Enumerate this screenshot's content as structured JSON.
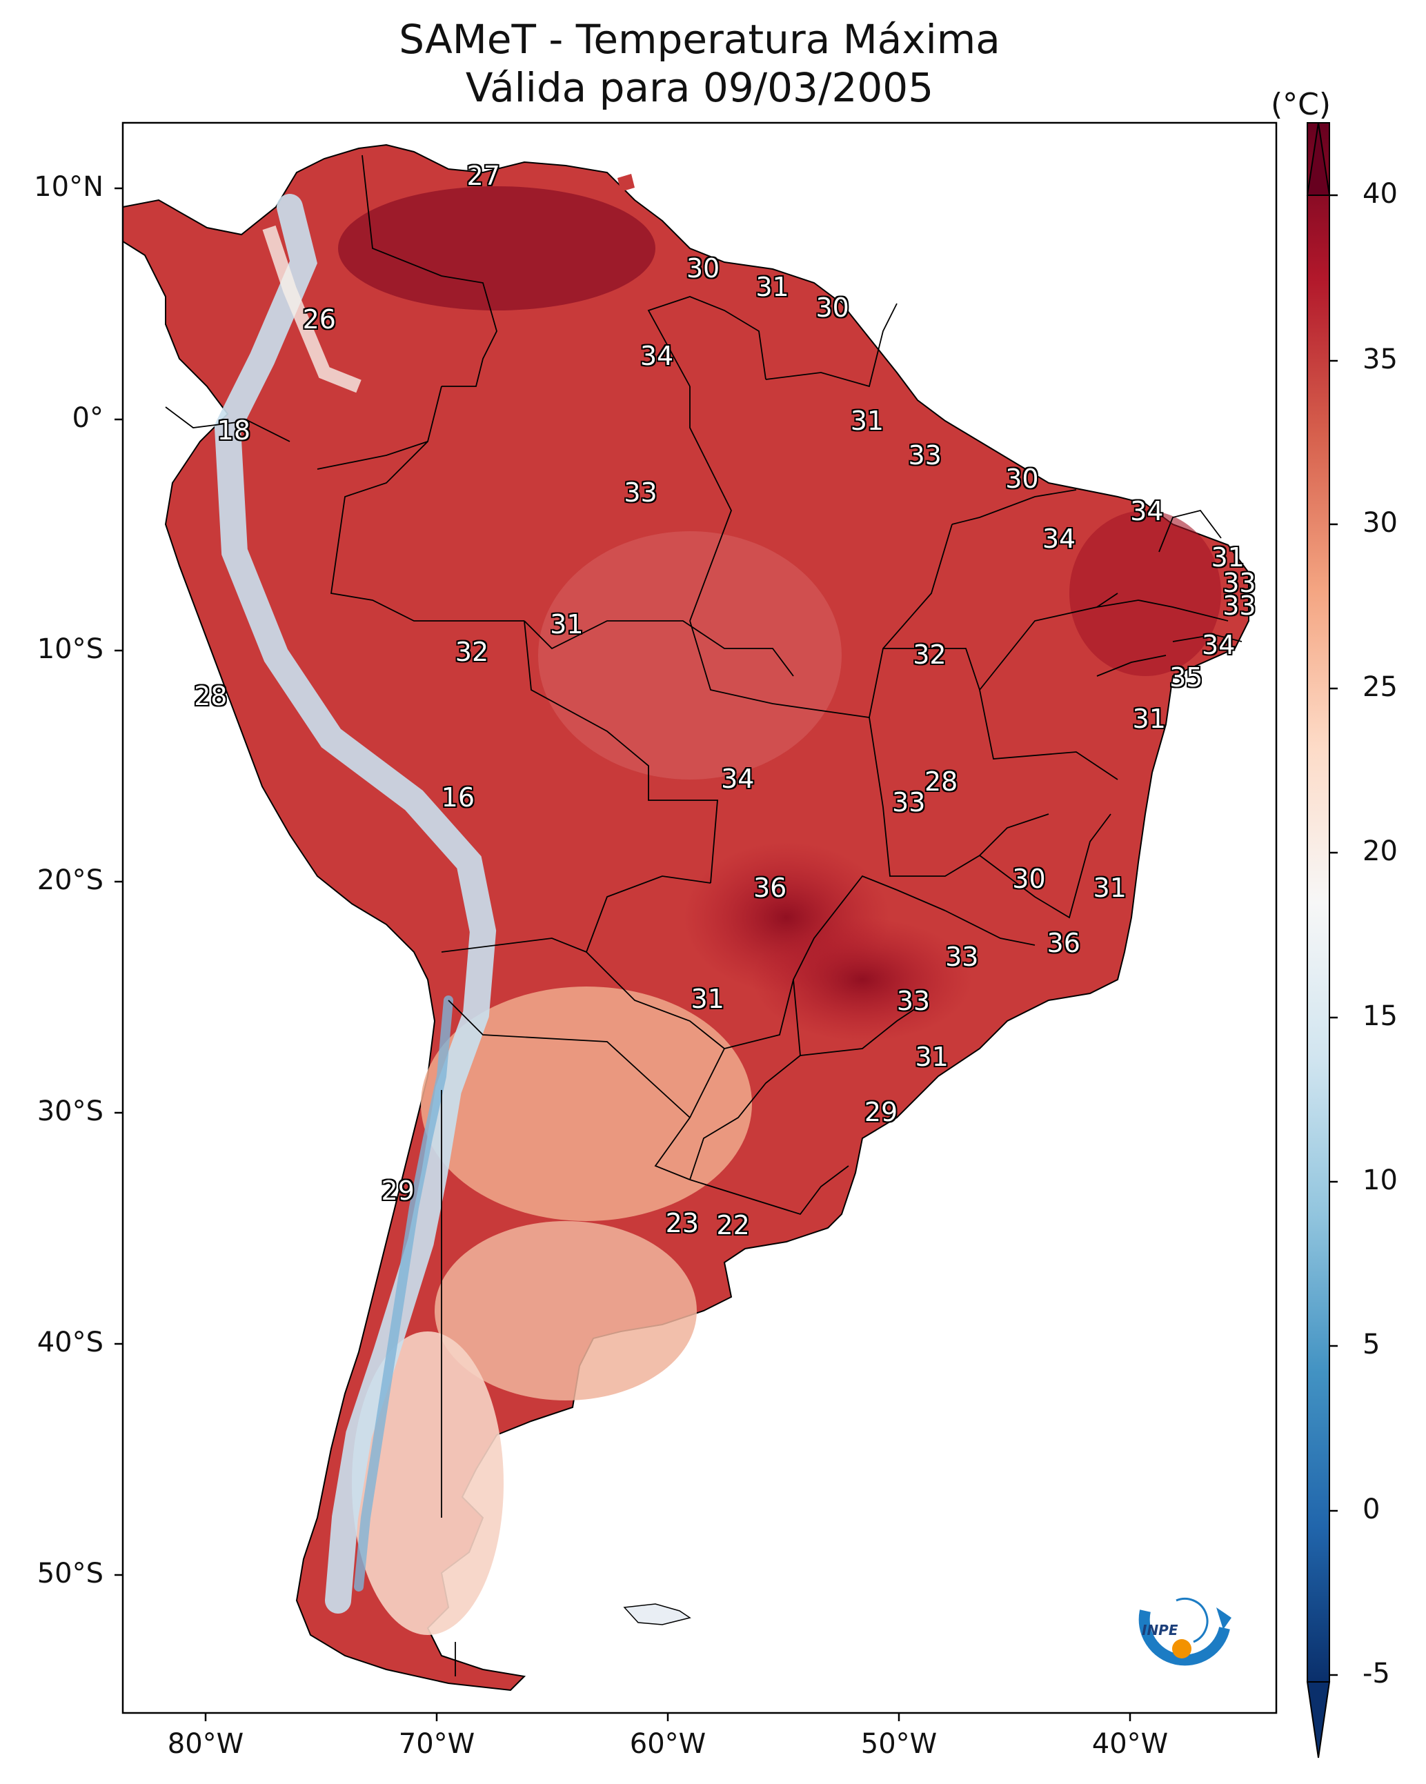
{
  "title_line1": "SAMeT - Temperatura Máxima",
  "title_line2": "Válida para 09/03/2005",
  "colorbar": {
    "unit": "(°C)",
    "ticks": [
      "40",
      "35",
      "30",
      "25",
      "20",
      "15",
      "10",
      "5",
      "0",
      "-5"
    ],
    "min": -5,
    "max": 40,
    "colors": [
      "#0a2f6b",
      "#2166ac",
      "#4393c3",
      "#92c5de",
      "#d1e5f0",
      "#f7f7f7",
      "#fddbc7",
      "#f4a582",
      "#d6604d",
      "#b2182b",
      "#67001f"
    ]
  },
  "axes": {
    "lat_labels": [
      "10°N",
      "0°",
      "10°S",
      "20°S",
      "30°S",
      "40°S",
      "50°S"
    ],
    "lon_labels": [
      "80°W",
      "70°W",
      "60°W",
      "50°W",
      "40°W"
    ]
  },
  "point_values": [
    {
      "v": "27",
      "lon": -67.5,
      "lat": 10.6
    },
    {
      "v": "26",
      "lon": -74.6,
      "lat": 4.4
    },
    {
      "v": "18",
      "lon": -78.3,
      "lat": -0.4
    },
    {
      "v": "30",
      "lon": -58.0,
      "lat": 6.6
    },
    {
      "v": "31",
      "lon": -55.0,
      "lat": 5.8
    },
    {
      "v": "30",
      "lon": -52.4,
      "lat": 4.9
    },
    {
      "v": "34",
      "lon": -60.0,
      "lat": 2.8
    },
    {
      "v": "31",
      "lon": -50.9,
      "lat": 0.0
    },
    {
      "v": "33",
      "lon": -48.4,
      "lat": -1.5
    },
    {
      "v": "30",
      "lon": -44.2,
      "lat": -2.5
    },
    {
      "v": "33",
      "lon": -60.7,
      "lat": -3.1
    },
    {
      "v": "34",
      "lon": -38.8,
      "lat": -3.9
    },
    {
      "v": "34",
      "lon": -42.6,
      "lat": -5.1
    },
    {
      "v": "31",
      "lon": -35.3,
      "lat": -5.9
    },
    {
      "v": "33",
      "lon": -34.8,
      "lat": -7.0
    },
    {
      "v": "33",
      "lon": -34.8,
      "lat": -8.0
    },
    {
      "v": "31",
      "lon": -63.9,
      "lat": -8.8
    },
    {
      "v": "32",
      "lon": -68.0,
      "lat": -10.0
    },
    {
      "v": "32",
      "lon": -48.2,
      "lat": -10.1
    },
    {
      "v": "34",
      "lon": -35.7,
      "lat": -9.7
    },
    {
      "v": "35",
      "lon": -37.1,
      "lat": -11.1
    },
    {
      "v": "28",
      "lon": -79.3,
      "lat": -11.9
    },
    {
      "v": "31",
      "lon": -38.7,
      "lat": -12.9
    },
    {
      "v": "34",
      "lon": -56.5,
      "lat": -15.5
    },
    {
      "v": "28",
      "lon": -47.7,
      "lat": -15.6
    },
    {
      "v": "33",
      "lon": -49.1,
      "lat": -16.5
    },
    {
      "v": "16",
      "lon": -68.6,
      "lat": -16.3
    },
    {
      "v": "36",
      "lon": -55.1,
      "lat": -20.2
    },
    {
      "v": "30",
      "lon": -43.9,
      "lat": -19.8
    },
    {
      "v": "31",
      "lon": -40.4,
      "lat": -20.2
    },
    {
      "v": "36",
      "lon": -42.4,
      "lat": -22.6
    },
    {
      "v": "33",
      "lon": -46.8,
      "lat": -23.2
    },
    {
      "v": "31",
      "lon": -57.8,
      "lat": -25.0
    },
    {
      "v": "33",
      "lon": -48.9,
      "lat": -25.1
    },
    {
      "v": "31",
      "lon": -48.1,
      "lat": -27.5
    },
    {
      "v": "29",
      "lon": -50.3,
      "lat": -29.9
    },
    {
      "v": "29",
      "lon": -71.2,
      "lat": -33.3
    },
    {
      "v": "23",
      "lon": -58.9,
      "lat": -34.7
    },
    {
      "v": "22",
      "lon": -56.7,
      "lat": -34.8
    }
  ],
  "logo": {
    "text": "INPE"
  },
  "colors": {
    "frame": "#000000",
    "ocean": "#ffffff",
    "land_hot": "#b2182b",
    "land_cool": "#92c5de"
  }
}
